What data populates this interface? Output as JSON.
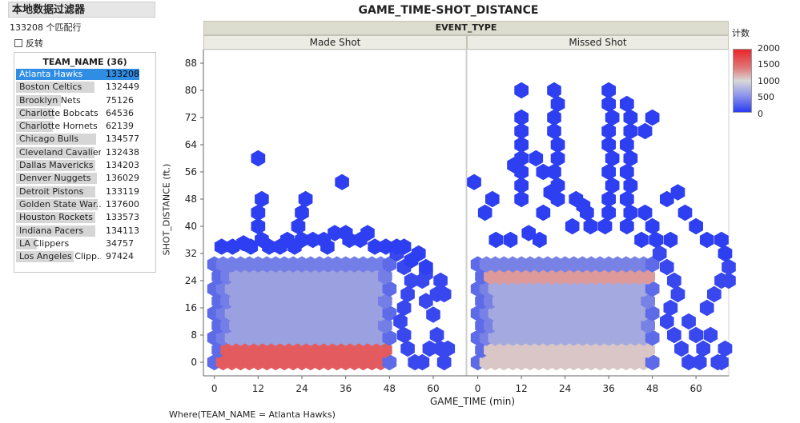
{
  "filter": {
    "title": "本地数据过滤器",
    "match_count": "133208 个匹配行",
    "invert_label": "反转",
    "list_header": "TEAM_NAME (36)",
    "teams": [
      {
        "name": "Atlanta Hawks",
        "count": "133208",
        "selected": true
      },
      {
        "name": "Boston Celtics",
        "count": "132449",
        "selected": false
      },
      {
        "name": "Brooklyn Nets",
        "count": "75126",
        "selected": false
      },
      {
        "name": "Charlotte Bobcats",
        "count": "64536",
        "selected": false
      },
      {
        "name": "Charlotte Hornets",
        "count": "62139",
        "selected": false
      },
      {
        "name": "Chicago Bulls",
        "count": "134577",
        "selected": false
      },
      {
        "name": "Cleveland Cavaliers",
        "count": "132438",
        "selected": false
      },
      {
        "name": "Dallas Mavericks",
        "count": "134203",
        "selected": false
      },
      {
        "name": "Denver Nuggets",
        "count": "136029",
        "selected": false
      },
      {
        "name": "Detroit Pistons",
        "count": "133119",
        "selected": false
      },
      {
        "name": "Golden State War...",
        "count": "137600",
        "selected": false
      },
      {
        "name": "Houston Rockets",
        "count": "133573",
        "selected": false
      },
      {
        "name": "Indiana Pacers",
        "count": "134113",
        "selected": false
      },
      {
        "name": "LA Clippers",
        "count": "34757",
        "selected": false
      },
      {
        "name": "Los Angeles Clipp...",
        "count": "97424",
        "selected": false
      }
    ]
  },
  "where_clause": "Where(TEAM_NAME = Atlanta Hawks)",
  "colors": {
    "low": "#2a3cf0",
    "mid": "#d8d8d8",
    "high": "#e8262a",
    "selected": "#2f8de4"
  },
  "chart_data": {
    "type": "heatmap",
    "subtype": "hexbin",
    "title": "GAME_TIME-SHOT_DISTANCE",
    "group_label": "EVENT_TYPE",
    "panels": [
      "Made Shot",
      "Missed Shot"
    ],
    "xlabel": "GAME_TIME (min)",
    "ylabel": "SHOT_DISTANCE (ft.)",
    "xlim": [
      -3,
      69
    ],
    "ylim": [
      -4,
      92
    ],
    "xticks": [
      0,
      12,
      24,
      36,
      48,
      60
    ],
    "yticks": [
      0,
      8,
      16,
      24,
      32,
      40,
      48,
      56,
      64,
      72,
      80,
      88
    ],
    "legend": {
      "title": "计数",
      "min": 0,
      "max": 2000,
      "ticks": [
        2000,
        1500,
        1000,
        500,
        0
      ]
    },
    "approximate": true,
    "hex_spacing": {
      "x": 2.4,
      "y": 3.6
    },
    "made_shot": {
      "core": {
        "x_range": [
          0,
          48
        ],
        "y_range": [
          0,
          30
        ],
        "low_zone_y_max": 4,
        "value": 420,
        "inner_value": 650,
        "baseline_value": 1700
      },
      "right_tail_points": [
        [
          50,
          32
        ],
        [
          52,
          28
        ],
        [
          54,
          24
        ],
        [
          53,
          20
        ],
        [
          52,
          16
        ],
        [
          51,
          12
        ],
        [
          52,
          8
        ],
        [
          53,
          4
        ],
        [
          55,
          0
        ],
        [
          57,
          0
        ],
        [
          59,
          4
        ],
        [
          61,
          8
        ],
        [
          61,
          20
        ],
        [
          62,
          24
        ],
        [
          63,
          20
        ],
        [
          57,
          24
        ],
        [
          58,
          26
        ],
        [
          58,
          18
        ],
        [
          60,
          14
        ],
        [
          62,
          4
        ],
        [
          64,
          4
        ],
        [
          63,
          0
        ]
      ],
      "outliers": [
        [
          12,
          60
        ],
        [
          13,
          48
        ],
        [
          12,
          44
        ],
        [
          12,
          40
        ],
        [
          13,
          36
        ],
        [
          24,
          44
        ],
        [
          25,
          48
        ],
        [
          23,
          40
        ],
        [
          24,
          36
        ],
        [
          35,
          53
        ],
        [
          36,
          38
        ],
        [
          37,
          36
        ],
        [
          31,
          34
        ],
        [
          27,
          36
        ],
        [
          30,
          36
        ],
        [
          33,
          38
        ],
        [
          2,
          34
        ],
        [
          5,
          34
        ],
        [
          8,
          35
        ],
        [
          10,
          34
        ],
        [
          15,
          34
        ],
        [
          18,
          34
        ],
        [
          22,
          34
        ],
        [
          20,
          36
        ],
        [
          40,
          36
        ],
        [
          42,
          38
        ],
        [
          44,
          34
        ],
        [
          47,
          34
        ],
        [
          50,
          34
        ],
        [
          52,
          34
        ],
        [
          54,
          30
        ],
        [
          56,
          32
        ],
        [
          58,
          28
        ]
      ]
    },
    "missed_shot": {
      "core": {
        "x_range": [
          0,
          48
        ],
        "y_range": [
          0,
          30
        ],
        "low_zone_y_max": 4,
        "value": 450,
        "inner_value": 700,
        "band_y": 24,
        "band_value": 1350,
        "baseline_value": 1100
      },
      "right_tail_points": [
        [
          50,
          32
        ],
        [
          52,
          28
        ],
        [
          54,
          24
        ],
        [
          55,
          20
        ],
        [
          53,
          16
        ],
        [
          52,
          12
        ],
        [
          54,
          8
        ],
        [
          56,
          4
        ],
        [
          58,
          0
        ],
        [
          61,
          0
        ],
        [
          62,
          4
        ],
        [
          64,
          8
        ],
        [
          63,
          16
        ],
        [
          65,
          20
        ],
        [
          67,
          24
        ],
        [
          69,
          28
        ],
        [
          69,
          24
        ],
        [
          68,
          4
        ],
        [
          67,
          0
        ],
        [
          66,
          0
        ],
        [
          60,
          8
        ],
        [
          58,
          12
        ]
      ],
      "outliers": [
        [
          -1,
          53
        ],
        [
          2,
          44
        ],
        [
          4,
          48
        ],
        [
          12,
          80
        ],
        [
          12,
          72
        ],
        [
          12,
          68
        ],
        [
          12,
          64
        ],
        [
          12,
          60
        ],
        [
          10,
          58
        ],
        [
          12,
          56
        ],
        [
          12,
          52
        ],
        [
          12,
          48
        ],
        [
          16,
          60
        ],
        [
          18,
          56
        ],
        [
          21,
          80
        ],
        [
          22,
          76
        ],
        [
          21,
          72
        ],
        [
          21,
          68
        ],
        [
          22,
          64
        ],
        [
          22,
          60
        ],
        [
          21,
          56
        ],
        [
          22,
          52
        ],
        [
          20,
          50
        ],
        [
          22,
          48
        ],
        [
          18,
          44
        ],
        [
          36,
          80
        ],
        [
          36,
          76
        ],
        [
          37,
          72
        ],
        [
          36,
          68
        ],
        [
          36,
          64
        ],
        [
          37,
          60
        ],
        [
          36,
          56
        ],
        [
          37,
          52
        ],
        [
          36,
          48
        ],
        [
          36,
          44
        ],
        [
          35,
          40
        ],
        [
          26,
          40
        ],
        [
          27,
          48
        ],
        [
          29,
          46
        ],
        [
          30,
          44
        ],
        [
          31,
          40
        ],
        [
          41,
          76
        ],
        [
          42,
          72
        ],
        [
          42,
          68
        ],
        [
          41,
          64
        ],
        [
          42,
          60
        ],
        [
          41,
          56
        ],
        [
          42,
          52
        ],
        [
          41,
          48
        ],
        [
          42,
          44
        ],
        [
          41,
          40
        ],
        [
          46,
          68
        ],
        [
          48,
          72
        ],
        [
          46,
          44
        ],
        [
          48,
          40
        ],
        [
          52,
          48
        ],
        [
          55,
          50
        ],
        [
          57,
          44
        ],
        [
          60,
          40
        ],
        [
          63,
          36
        ],
        [
          67,
          36
        ],
        [
          68,
          32
        ],
        [
          5,
          36
        ],
        [
          9,
          36
        ],
        [
          14,
          38
        ],
        [
          17,
          36
        ],
        [
          45,
          36
        ],
        [
          49,
          36
        ],
        [
          53,
          36
        ]
      ]
    }
  }
}
